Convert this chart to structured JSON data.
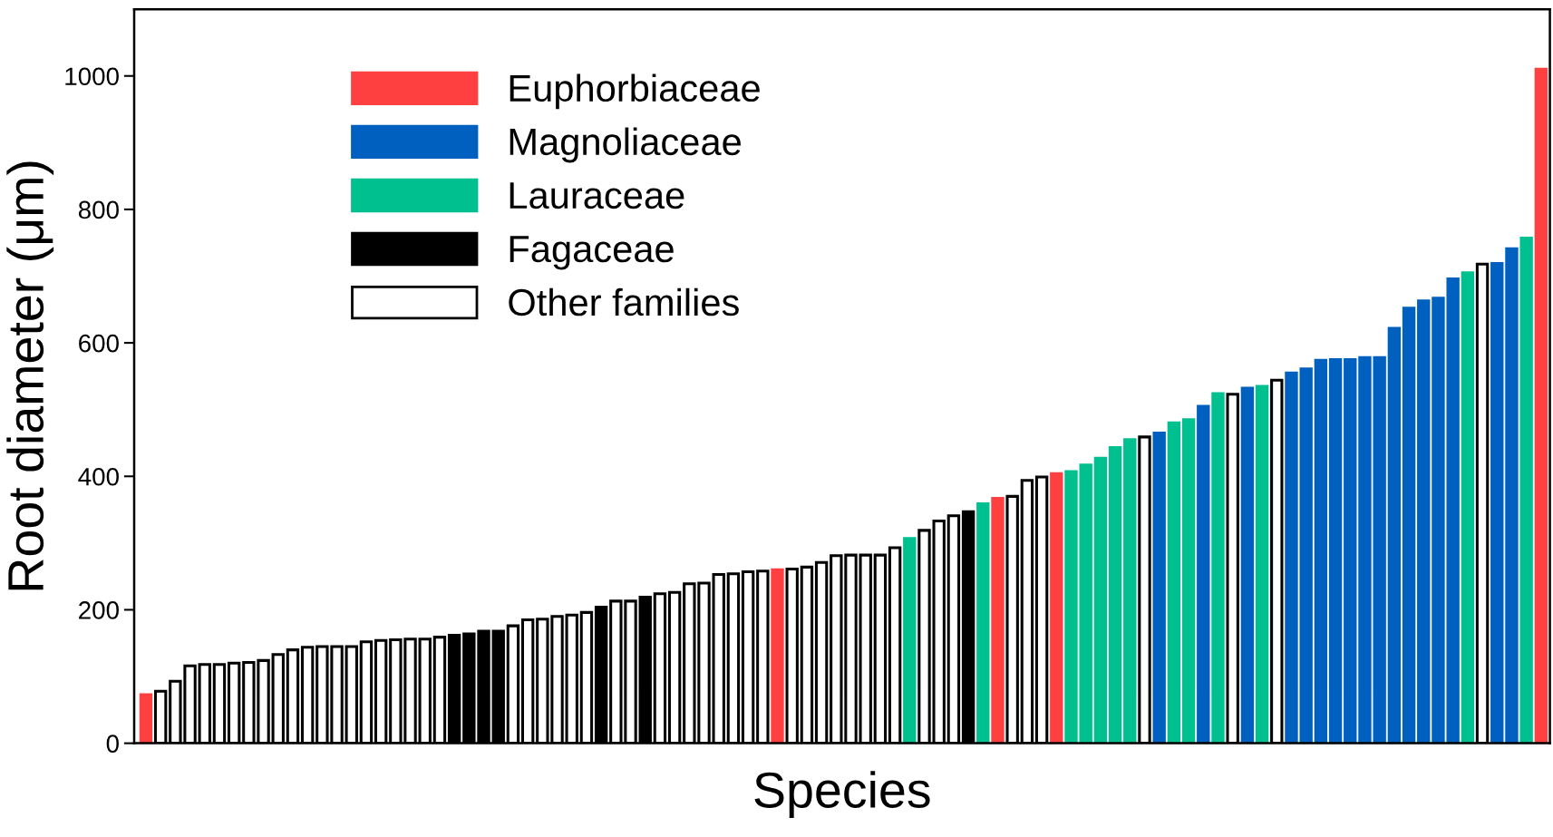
{
  "chart_data": {
    "type": "bar",
    "xlabel": "Species",
    "ylabel": "Root diameter (μm)",
    "categories": [
      null,
      null,
      null,
      null,
      null,
      null,
      null,
      null,
      null,
      null,
      null,
      null,
      null,
      null,
      null,
      null,
      null,
      null,
      null,
      null,
      null,
      null,
      null,
      null,
      null,
      null,
      null,
      null,
      null,
      null,
      null,
      null,
      null,
      null,
      null,
      null,
      null,
      null,
      null,
      null,
      null,
      null,
      null,
      null,
      null,
      null,
      null,
      null,
      null,
      null,
      null,
      null,
      null,
      null,
      null,
      null,
      null,
      null,
      null,
      null,
      null,
      null,
      null,
      null,
      null,
      null,
      null,
      null,
      null,
      null,
      null,
      null,
      null,
      null,
      null,
      null,
      null,
      null,
      null,
      null,
      null,
      null,
      null,
      null,
      null,
      null,
      null,
      null,
      null,
      null,
      null,
      null,
      null,
      null,
      null,
      null
    ],
    "series": [
      {
        "name": "Euphorbiaceae",
        "color": "#ff4040",
        "values": [
          73,
          null,
          null,
          null,
          null,
          null,
          null,
          null,
          null,
          null,
          null,
          null,
          null,
          null,
          null,
          null,
          null,
          null,
          null,
          null,
          null,
          null,
          null,
          null,
          null,
          null,
          null,
          null,
          null,
          null,
          null,
          null,
          null,
          null,
          null,
          null,
          null,
          null,
          null,
          null,
          null,
          null,
          null,
          260,
          null,
          null,
          null,
          null,
          null,
          null,
          null,
          null,
          null,
          null,
          null,
          null,
          null,
          null,
          367,
          null,
          null,
          null,
          404,
          null,
          null,
          null,
          null,
          null,
          null,
          null,
          null,
          null,
          null,
          null,
          null,
          null,
          null,
          null,
          null,
          null,
          null,
          null,
          null,
          null,
          null,
          null,
          null,
          null,
          null,
          null,
          null,
          null,
          null,
          null,
          null,
          1010
        ]
      },
      {
        "name": "Magnoliaceae",
        "color": "#0060c0",
        "values": [
          null,
          null,
          null,
          null,
          null,
          null,
          null,
          null,
          null,
          null,
          null,
          null,
          null,
          null,
          null,
          null,
          null,
          null,
          null,
          null,
          null,
          null,
          null,
          null,
          null,
          null,
          null,
          null,
          null,
          null,
          null,
          null,
          null,
          null,
          null,
          null,
          null,
          null,
          null,
          null,
          null,
          null,
          null,
          null,
          null,
          null,
          null,
          null,
          null,
          null,
          null,
          null,
          null,
          null,
          null,
          null,
          null,
          null,
          null,
          null,
          null,
          null,
          null,
          null,
          null,
          null,
          null,
          null,
          null,
          465,
          null,
          null,
          505,
          null,
          null,
          532,
          null,
          null,
          555,
          561,
          574,
          575,
          575,
          578,
          578,
          622,
          652,
          663,
          667,
          696,
          null,
          null,
          719,
          741,
          null,
          null
        ]
      },
      {
        "name": "Lauraceae",
        "color": "#00c090",
        "values": [
          null,
          null,
          null,
          null,
          null,
          null,
          null,
          null,
          null,
          null,
          null,
          null,
          null,
          null,
          null,
          null,
          null,
          null,
          null,
          null,
          null,
          null,
          null,
          null,
          null,
          null,
          null,
          null,
          null,
          null,
          null,
          null,
          null,
          null,
          null,
          null,
          null,
          null,
          null,
          null,
          null,
          null,
          null,
          null,
          null,
          null,
          null,
          null,
          null,
          null,
          null,
          null,
          307,
          null,
          null,
          null,
          null,
          359,
          null,
          null,
          null,
          null,
          null,
          407,
          417,
          427,
          443,
          455,
          null,
          null,
          480,
          485,
          null,
          524,
          null,
          null,
          535,
          null,
          null,
          null,
          null,
          null,
          null,
          null,
          null,
          null,
          null,
          null,
          null,
          null,
          705,
          null,
          null,
          null,
          757,
          null
        ]
      },
      {
        "name": "Fagaceae",
        "color": "#000000",
        "values": [
          null,
          null,
          null,
          null,
          null,
          null,
          null,
          null,
          null,
          null,
          null,
          null,
          null,
          null,
          null,
          null,
          null,
          null,
          null,
          null,
          null,
          162,
          164,
          168,
          168,
          null,
          null,
          null,
          null,
          null,
          null,
          204,
          null,
          null,
          219,
          null,
          null,
          null,
          null,
          null,
          null,
          null,
          null,
          null,
          null,
          null,
          null,
          null,
          null,
          null,
          null,
          null,
          null,
          null,
          null,
          null,
          347,
          null,
          null,
          null,
          null,
          null,
          null,
          null,
          null,
          null,
          null,
          null,
          null,
          null,
          null,
          null,
          null,
          null,
          null,
          null,
          null,
          null,
          null,
          null,
          null,
          null,
          null,
          null,
          null,
          null,
          null,
          null,
          null,
          null,
          null,
          null,
          null,
          null,
          null,
          null
        ]
      },
      {
        "name": "Other families",
        "color": "#ffffff",
        "values": [
          null,
          78,
          93,
          116,
          118,
          118,
          120,
          121,
          124,
          133,
          140,
          144,
          145,
          145,
          145,
          152,
          154,
          155,
          156,
          156,
          159,
          null,
          null,
          null,
          null,
          176,
          185,
          186,
          190,
          192,
          196,
          null,
          213,
          213,
          null,
          224,
          226,
          239,
          240,
          253,
          254,
          257,
          258,
          null,
          261,
          264,
          271,
          281,
          282,
          282,
          282,
          293,
          null,
          319,
          333,
          341,
          null,
          null,
          null,
          370,
          394,
          399,
          null,
          null,
          null,
          null,
          null,
          null,
          459,
          null,
          null,
          null,
          null,
          null,
          523,
          null,
          null,
          544,
          null,
          null,
          null,
          null,
          null,
          null,
          null,
          null,
          null,
          null,
          null,
          null,
          null,
          718,
          null,
          null,
          null,
          null
        ]
      }
    ],
    "ylim": [
      0,
      1100
    ],
    "yticks": [
      0,
      200,
      400,
      600,
      800,
      1000
    ],
    "grid": false,
    "legend": "top left",
    "tick_labels": "y"
  }
}
